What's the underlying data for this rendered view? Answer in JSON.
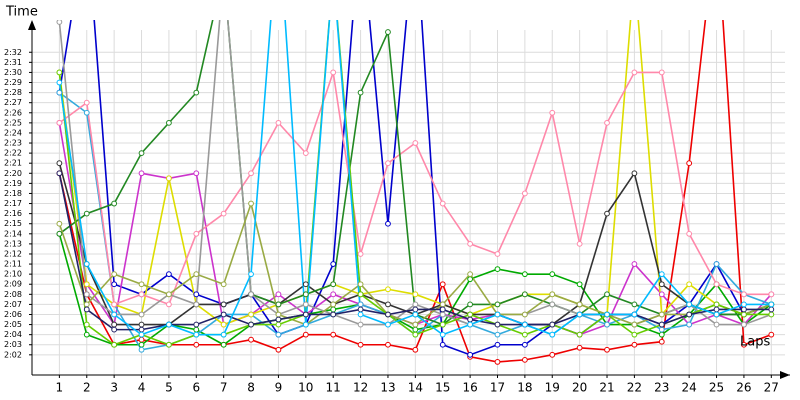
{
  "chart_data": {
    "type": "line",
    "y_label": "Time",
    "x_label": "Laps",
    "x": [
      1,
      2,
      3,
      4,
      5,
      6,
      7,
      8,
      9,
      10,
      11,
      12,
      13,
      14,
      15,
      16,
      17,
      18,
      19,
      20,
      21,
      22,
      23,
      24,
      25,
      26,
      27
    ],
    "xlim": [
      0,
      27.5
    ],
    "xticks": [
      1,
      2,
      3,
      4,
      5,
      6,
      7,
      8,
      9,
      10,
      11,
      12,
      13,
      14,
      15,
      16,
      17,
      18,
      19,
      20,
      21,
      22,
      23,
      24,
      25,
      26,
      27
    ],
    "ylim": [
      120,
      155
    ],
    "yticks": [
      {
        "value": 122,
        "label": "2:02"
      },
      {
        "value": 123,
        "label": "2:03"
      },
      {
        "value": 124,
        "label": "2:04"
      },
      {
        "value": 125,
        "label": "2:05"
      },
      {
        "value": 126,
        "label": "2:06"
      },
      {
        "value": 127,
        "label": "2:07"
      },
      {
        "value": 128,
        "label": "2:08"
      },
      {
        "value": 129,
        "label": "2:09"
      },
      {
        "value": 130,
        "label": "2:10"
      },
      {
        "value": 131,
        "label": "2:11"
      },
      {
        "value": 132,
        "label": "2:12"
      },
      {
        "value": 133,
        "label": "2:13"
      },
      {
        "value": 134,
        "label": "2:14"
      },
      {
        "value": 135,
        "label": "2:15"
      },
      {
        "value": 136,
        "label": "2:16"
      },
      {
        "value": 137,
        "label": "2:17"
      },
      {
        "value": 138,
        "label": "2:18"
      },
      {
        "value": 139,
        "label": "2:19"
      },
      {
        "value": 140,
        "label": "2:20"
      },
      {
        "value": 141,
        "label": "2:21"
      },
      {
        "value": 142,
        "label": "2:22"
      },
      {
        "value": 143,
        "label": "2:23"
      },
      {
        "value": 144,
        "label": "2:24"
      },
      {
        "value": 145,
        "label": "2:25"
      },
      {
        "value": 146,
        "label": "2:26"
      },
      {
        "value": 147,
        "label": "2:27"
      },
      {
        "value": 148,
        "label": "2:28"
      },
      {
        "value": 149,
        "label": "2:29"
      },
      {
        "value": 150,
        "label": "2:30"
      },
      {
        "value": 151,
        "label": "2:31"
      },
      {
        "value": 152,
        "label": "2:32"
      }
    ],
    "grid": true,
    "series": [
      {
        "color": "#ee0000",
        "values": [
          140,
          128,
          123,
          123.5,
          123,
          123,
          123,
          123.5,
          122.5,
          124,
          124,
          123,
          123,
          122.5,
          129,
          121.8,
          121.3,
          121.5,
          122,
          122.7,
          122.5,
          123,
          123.3,
          141,
          165,
          123,
          124
        ]
      },
      {
        "color": "#0000cc",
        "values": [
          148,
          165,
          129,
          128,
          130,
          128,
          127,
          128,
          124,
          125,
          131,
          165,
          135,
          165,
          123,
          122,
          123,
          123,
          125,
          124,
          126,
          126,
          125,
          127,
          131,
          126,
          127
        ]
      },
      {
        "color": "#00aa00",
        "values": [
          134,
          124,
          123,
          123,
          125,
          124.5,
          123,
          125,
          125.5,
          126,
          126.5,
          127,
          126,
          124.5,
          125,
          129.5,
          130.5,
          130,
          130,
          129,
          125,
          125,
          124,
          126,
          129,
          125,
          127
        ]
      },
      {
        "color": "#cc33cc",
        "values": [
          145,
          129,
          125,
          140,
          139.5,
          140,
          125,
          126,
          128,
          126,
          128,
          127,
          126,
          125,
          126,
          125.5,
          126,
          125,
          125,
          124,
          125,
          131,
          128,
          125,
          126,
          125,
          128
        ]
      },
      {
        "color": "#33aadd",
        "values": [
          148,
          146,
          127,
          122.5,
          123,
          124,
          126,
          126,
          124,
          125,
          126,
          127,
          126,
          124,
          126,
          125,
          124,
          125,
          124,
          126,
          125,
          126,
          124.5,
          125,
          131,
          128,
          127
        ]
      },
      {
        "color": "#dddd00",
        "values": [
          150,
          129,
          127,
          126,
          139.5,
          127,
          125,
          126,
          127,
          128,
          129,
          128,
          128.5,
          128,
          127,
          126,
          127,
          128,
          128,
          127,
          126,
          160,
          126,
          129,
          127,
          126,
          127
        ]
      },
      {
        "color": "#333333",
        "values": [
          141,
          131,
          125,
          125,
          125,
          127,
          127,
          128,
          127,
          129,
          127,
          128,
          127,
          126,
          127,
          126,
          126,
          125,
          125,
          127,
          136,
          140,
          129,
          127,
          126,
          126,
          127
        ]
      },
      {
        "color": "#ff88aa",
        "values": [
          145,
          147,
          127,
          128,
          127,
          134,
          136,
          140,
          145,
          142,
          150,
          132,
          141,
          143,
          137,
          133,
          132,
          138,
          146,
          133,
          145,
          150,
          150,
          134,
          129,
          128,
          128
        ]
      },
      {
        "color": "#228822",
        "values": [
          134,
          136,
          137,
          142,
          145,
          148,
          160,
          128,
          127,
          128,
          129,
          148,
          154,
          126,
          125,
          127,
          127,
          128,
          127,
          126,
          128,
          127,
          126,
          127,
          126,
          126,
          127
        ]
      },
      {
        "color": "#999999",
        "values": [
          155,
          128,
          126,
          126,
          128,
          127,
          160,
          128,
          126,
          127,
          126,
          125,
          125,
          127,
          126,
          125,
          126,
          126,
          127,
          126,
          126,
          125,
          126,
          127,
          125,
          125,
          126
        ]
      },
      {
        "color": "#99aa44",
        "values": [
          135,
          127,
          130,
          129,
          128,
          130,
          129,
          137,
          126,
          125,
          127,
          129,
          126,
          125,
          127,
          130,
          126,
          126,
          128,
          127,
          126,
          125,
          126,
          126,
          127,
          126,
          127
        ]
      },
      {
        "color": "#66cc00",
        "values": [
          150,
          125,
          123,
          124,
          123,
          124,
          124,
          125,
          125,
          126,
          160,
          128,
          126,
          124,
          125,
          126,
          125,
          124,
          125,
          124,
          126,
          124,
          125,
          126,
          127,
          126,
          126
        ]
      },
      {
        "color": "#222266",
        "values": [
          140,
          126.5,
          124.5,
          124.5,
          125,
          125,
          126,
          125,
          125.5,
          126,
          126,
          126.5,
          126,
          126.5,
          126.5,
          125.5,
          125,
          125,
          125,
          126,
          126,
          126,
          125,
          126,
          126.5,
          126.5,
          126.5
        ]
      },
      {
        "color": "#00bbff",
        "values": [
          149,
          131,
          126,
          124,
          125,
          124,
          124,
          130,
          165,
          125,
          160,
          126,
          125,
          126,
          124,
          125,
          126,
          125,
          124,
          126,
          126,
          126,
          130,
          127,
          126,
          127,
          127
        ]
      }
    ]
  }
}
